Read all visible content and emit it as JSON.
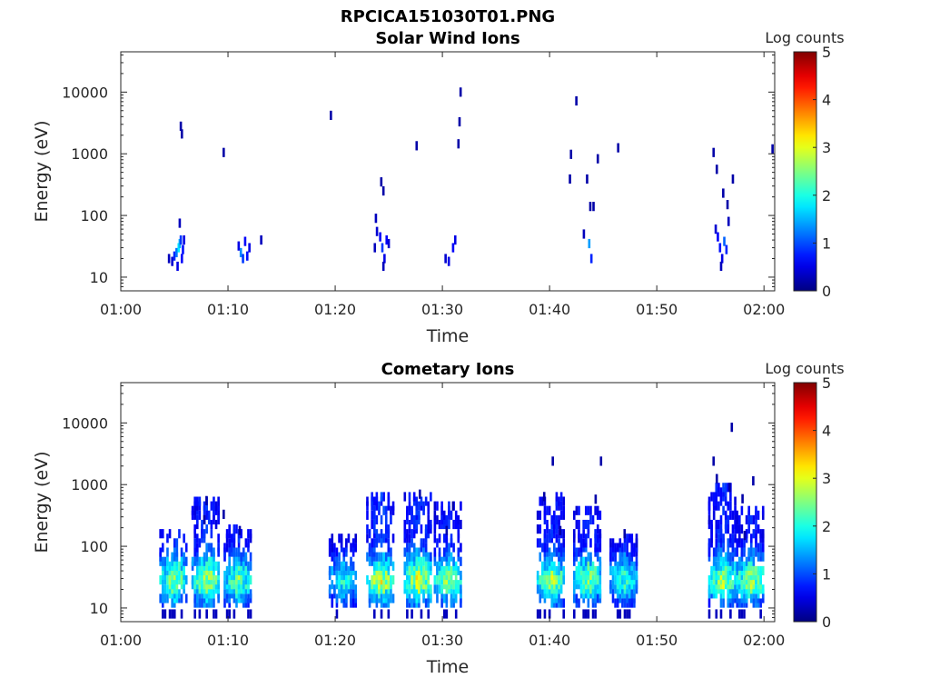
{
  "figure_title": "RPCICA151030T01.PNG",
  "chart_data": [
    {
      "type": "heatmap",
      "title": "Solar Wind Ions",
      "xlabel": "Time",
      "ylabel": "Energy (eV)",
      "yscale": "log",
      "ylim": [
        6,
        45000
      ],
      "xlim": [
        "01:00",
        "02:01"
      ],
      "xticks": [
        "01:00",
        "01:10",
        "01:20",
        "01:30",
        "01:40",
        "01:50",
        "02:00"
      ],
      "yticks": [
        "10",
        "100",
        "1000",
        "10000"
      ],
      "colorbar": {
        "label": "Log counts",
        "ticks": [
          "0",
          "1",
          "2",
          "3",
          "4",
          "5"
        ],
        "range": [
          0,
          5
        ]
      },
      "cells": [
        [
          4.5,
          20,
          0.3
        ],
        [
          4.8,
          18,
          0.4
        ],
        [
          5.0,
          22,
          0.8
        ],
        [
          5.2,
          25,
          1.2
        ],
        [
          5.3,
          15,
          0.5
        ],
        [
          5.4,
          30,
          1.8
        ],
        [
          5.5,
          35,
          1.5
        ],
        [
          5.6,
          40,
          0.9
        ],
        [
          5.7,
          20,
          0.6
        ],
        [
          5.8,
          28,
          0.7
        ],
        [
          5.9,
          40,
          0.5
        ],
        [
          5.5,
          75,
          0.3
        ],
        [
          5.6,
          2800,
          0.2
        ],
        [
          5.7,
          2100,
          0.2
        ],
        [
          9.6,
          1050,
          0.2
        ],
        [
          11.0,
          32,
          0.5
        ],
        [
          11.2,
          25,
          1.3
        ],
        [
          11.4,
          20,
          0.9
        ],
        [
          11.6,
          38,
          0.6
        ],
        [
          11.8,
          22,
          0.7
        ],
        [
          12.0,
          30,
          0.5
        ],
        [
          13.1,
          40,
          0.3
        ],
        [
          19.6,
          4200,
          0.2
        ],
        [
          27.6,
          1350,
          0.2
        ],
        [
          23.8,
          90,
          0.3
        ],
        [
          23.9,
          55,
          0.4
        ],
        [
          24.2,
          45,
          0.6
        ],
        [
          24.4,
          30,
          0.9
        ],
        [
          24.6,
          20,
          0.5
        ],
        [
          24.8,
          40,
          0.6
        ],
        [
          25.0,
          35,
          0.4
        ],
        [
          24.5,
          15,
          0.3
        ],
        [
          24.3,
          350,
          0.2
        ],
        [
          24.5,
          250,
          0.2
        ],
        [
          23.7,
          30,
          0.3
        ],
        [
          30.3,
          20,
          0.4
        ],
        [
          30.6,
          18,
          0.5
        ],
        [
          31.0,
          30,
          0.6
        ],
        [
          31.2,
          40,
          0.5
        ],
        [
          31.6,
          3300,
          0.2
        ],
        [
          31.5,
          1450,
          0.2
        ],
        [
          31.7,
          10000,
          0.2
        ],
        [
          42.0,
          980,
          0.2
        ],
        [
          42.5,
          7200,
          0.2
        ],
        [
          41.9,
          390,
          0.2
        ],
        [
          43.5,
          390,
          0.2
        ],
        [
          43.2,
          50,
          0.3
        ],
        [
          43.7,
          35,
          1.4
        ],
        [
          43.9,
          20,
          0.8
        ],
        [
          44.1,
          140,
          0.2
        ],
        [
          43.8,
          140,
          0.2
        ],
        [
          44.5,
          830,
          0.2
        ],
        [
          46.4,
          1250,
          0.2
        ],
        [
          55.3,
          1050,
          0.2
        ],
        [
          55.6,
          560,
          0.2
        ],
        [
          56.2,
          230,
          0.2
        ],
        [
          57.1,
          390,
          0.2
        ],
        [
          56.6,
          150,
          0.2
        ],
        [
          55.5,
          60,
          0.4
        ],
        [
          55.7,
          45,
          0.6
        ],
        [
          55.9,
          30,
          0.7
        ],
        [
          56.1,
          20,
          0.5
        ],
        [
          56.3,
          38,
          1.1
        ],
        [
          56.5,
          28,
          0.8
        ],
        [
          56.7,
          80,
          0.3
        ],
        [
          56.0,
          15,
          0.3
        ],
        [
          60.8,
          1200,
          0.2
        ]
      ]
    },
    {
      "type": "heatmap",
      "title": "Cometary Ions",
      "xlabel": "Time",
      "ylabel": "Energy (eV)",
      "yscale": "log",
      "ylim": [
        6,
        45000
      ],
      "xlim": [
        "01:00",
        "02:01"
      ],
      "xticks": [
        "01:00",
        "01:10",
        "01:20",
        "01:30",
        "01:40",
        "01:50",
        "02:00"
      ],
      "yticks": [
        "10",
        "100",
        "1000",
        "10000"
      ],
      "colorbar": {
        "label": "Log counts",
        "ticks": [
          "0",
          "1",
          "2",
          "3",
          "4",
          "5"
        ],
        "range": [
          0,
          5
        ]
      },
      "bursts": [
        [
          5.0,
          190,
          2.6
        ],
        [
          8.0,
          550,
          2.7
        ],
        [
          11.0,
          200,
          2.4
        ],
        [
          20.8,
          150,
          2.0
        ],
        [
          24.3,
          700,
          2.9
        ],
        [
          27.8,
          700,
          2.9
        ],
        [
          30.6,
          500,
          2.5
        ],
        [
          40.2,
          650,
          2.6
        ],
        [
          43.6,
          400,
          2.5
        ],
        [
          47.0,
          160,
          2.1
        ],
        [
          56.2,
          1200,
          2.7
        ],
        [
          58.8,
          400,
          2.6
        ]
      ],
      "outliers": [
        [
          8.0,
          550
        ],
        [
          9.6,
          330
        ],
        [
          7.8,
          270
        ],
        [
          11.1,
          180
        ],
        [
          27.9,
          700
        ],
        [
          31.0,
          450
        ],
        [
          30.4,
          180
        ],
        [
          40.3,
          2400
        ],
        [
          39.5,
          640
        ],
        [
          44.8,
          2400
        ],
        [
          44.3,
          580
        ],
        [
          47.0,
          160
        ],
        [
          41.0,
          180
        ],
        [
          55.3,
          2400
        ],
        [
          55.6,
          1250
        ],
        [
          56.8,
          900
        ],
        [
          59.0,
          1150
        ],
        [
          58.0,
          590
        ],
        [
          57.0,
          8500
        ],
        [
          58.2,
          150
        ]
      ]
    }
  ]
}
